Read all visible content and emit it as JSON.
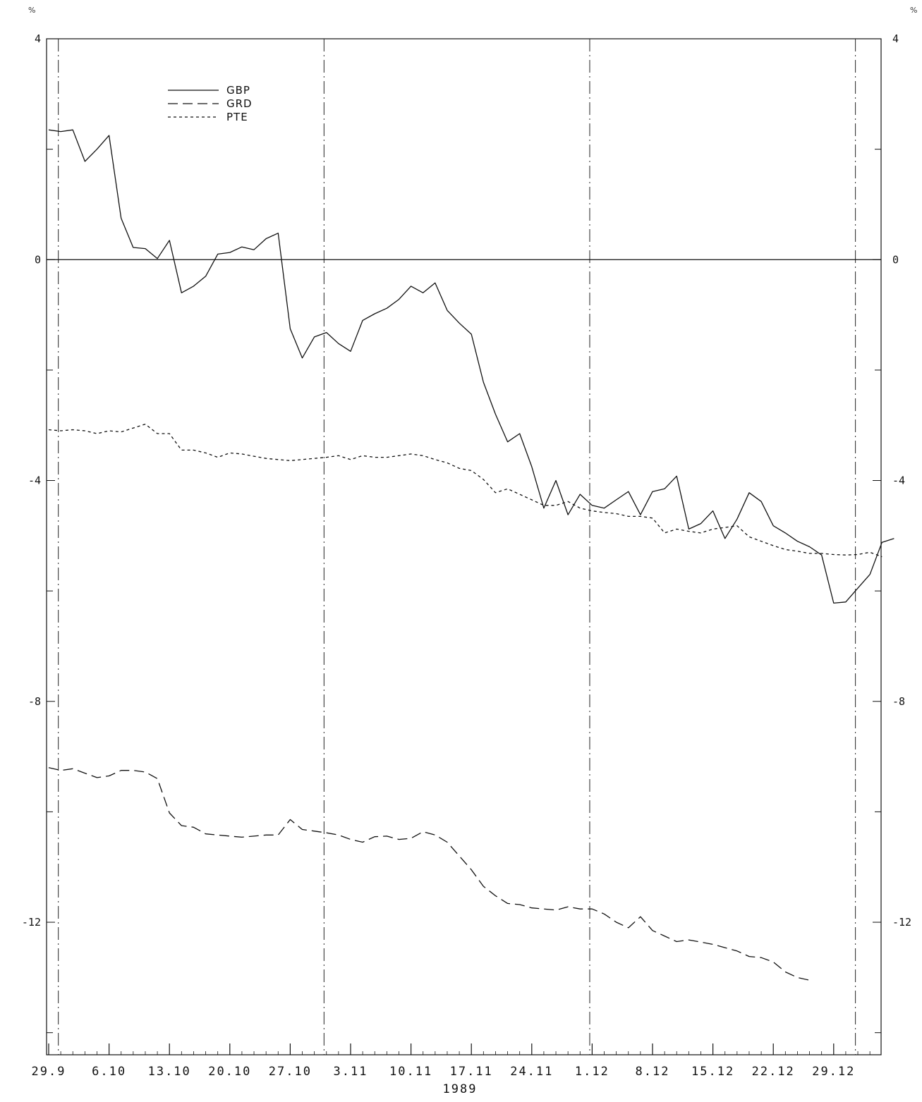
{
  "chart_data": {
    "type": "line",
    "xlabel": "1989",
    "ylabel": "%",
    "ylim": [
      -14.4,
      4
    ],
    "yticks": [
      4,
      0,
      -4,
      -8,
      -12
    ],
    "ytick_labels": [
      "4",
      "0",
      "-4",
      "-8",
      "-12"
    ],
    "x_count": 78,
    "xticks": [
      {
        "i": 0,
        "label": "29.9"
      },
      {
        "i": 5,
        "label": "6.10"
      },
      {
        "i": 10,
        "label": "13.10"
      },
      {
        "i": 15,
        "label": "20.10"
      },
      {
        "i": 20,
        "label": "27.10"
      },
      {
        "i": 25,
        "label": "3.11"
      },
      {
        "i": 30,
        "label": "10.11"
      },
      {
        "i": 35,
        "label": "17.11"
      },
      {
        "i": 40,
        "label": "24.11"
      },
      {
        "i": 45,
        "label": "1.12"
      },
      {
        "i": 50,
        "label": "8.12"
      },
      {
        "i": 55,
        "label": "15.12"
      },
      {
        "i": 60,
        "label": "22.12"
      },
      {
        "i": 65,
        "label": "29.12"
      }
    ],
    "vlines": [
      0.8,
      22.8,
      44.8,
      66.8
    ],
    "zero_line": 0,
    "grid": false,
    "legend_position": "top-left",
    "series": [
      {
        "name": "GBP",
        "style": "solid",
        "values": [
          2.35,
          2.32,
          2.35,
          1.78,
          2.0,
          2.25,
          0.75,
          0.22,
          0.2,
          0.02,
          0.35,
          -0.6,
          -0.48,
          -0.3,
          0.1,
          0.13,
          0.23,
          0.18,
          0.38,
          0.48,
          -1.25,
          -1.78,
          -1.4,
          -1.32,
          -1.52,
          -1.66,
          -1.1,
          -0.98,
          -0.88,
          -0.72,
          -0.48,
          -0.6,
          -0.42,
          -0.92,
          -1.15,
          -1.35,
          -2.22,
          -2.8,
          -3.3,
          -3.15,
          -3.75,
          -4.5,
          -4.0,
          -4.62,
          -4.25,
          -4.45,
          -4.5,
          -4.35,
          -4.2,
          -4.62,
          -4.2,
          -4.15,
          -3.92,
          -4.88,
          -4.78,
          -4.55,
          -5.05,
          -4.7,
          -4.22,
          -4.38,
          -4.82,
          -4.95,
          -5.1,
          -5.2,
          -5.35,
          -6.22,
          -6.2,
          -5.95,
          -5.7,
          -5.12,
          -5.05
        ]
      },
      {
        "name": "GRD",
        "style": "dashed",
        "values": [
          -9.2,
          -9.25,
          -9.22,
          -9.3,
          -9.38,
          -9.35,
          -9.25,
          -9.25,
          -9.28,
          -9.4,
          -10.02,
          -10.25,
          -10.28,
          -10.4,
          -10.42,
          -10.44,
          -10.46,
          -10.44,
          -10.42,
          -10.42,
          -10.14,
          -10.32,
          -10.35,
          -10.38,
          -10.42,
          -10.5,
          -10.55,
          -10.45,
          -10.44,
          -10.5,
          -10.48,
          -10.36,
          -10.42,
          -10.55,
          -10.8,
          -11.05,
          -11.35,
          -11.52,
          -11.66,
          -11.68,
          -11.74,
          -11.76,
          -11.78,
          -11.72,
          -11.76,
          -11.76,
          -11.85,
          -12.0,
          -12.1,
          -11.9,
          -12.15,
          -12.25,
          -12.35,
          -12.32,
          -12.36,
          -12.4,
          -12.46,
          -12.52,
          -12.62,
          -12.64,
          -12.72,
          -12.9,
          -13.0,
          -13.05
        ]
      },
      {
        "name": "PTE",
        "style": "dotted",
        "values": [
          -3.08,
          -3.1,
          -3.08,
          -3.1,
          -3.15,
          -3.1,
          -3.12,
          -3.05,
          -2.98,
          -3.15,
          -3.15,
          -3.45,
          -3.45,
          -3.5,
          -3.58,
          -3.5,
          -3.52,
          -3.56,
          -3.6,
          -3.62,
          -3.64,
          -3.62,
          -3.6,
          -3.58,
          -3.55,
          -3.62,
          -3.55,
          -3.58,
          -3.58,
          -3.55,
          -3.52,
          -3.55,
          -3.62,
          -3.68,
          -3.78,
          -3.82,
          -3.98,
          -4.22,
          -4.15,
          -4.25,
          -4.35,
          -4.45,
          -4.45,
          -4.38,
          -4.5,
          -4.55,
          -4.58,
          -4.6,
          -4.65,
          -4.65,
          -4.68,
          -4.95,
          -4.88,
          -4.92,
          -4.95,
          -4.88,
          -4.85,
          -4.82,
          -5.02,
          -5.1,
          -5.18,
          -5.25,
          -5.28,
          -5.32,
          -5.32,
          -5.34,
          -5.35,
          -5.34,
          -5.3,
          -5.38
        ]
      }
    ]
  }
}
